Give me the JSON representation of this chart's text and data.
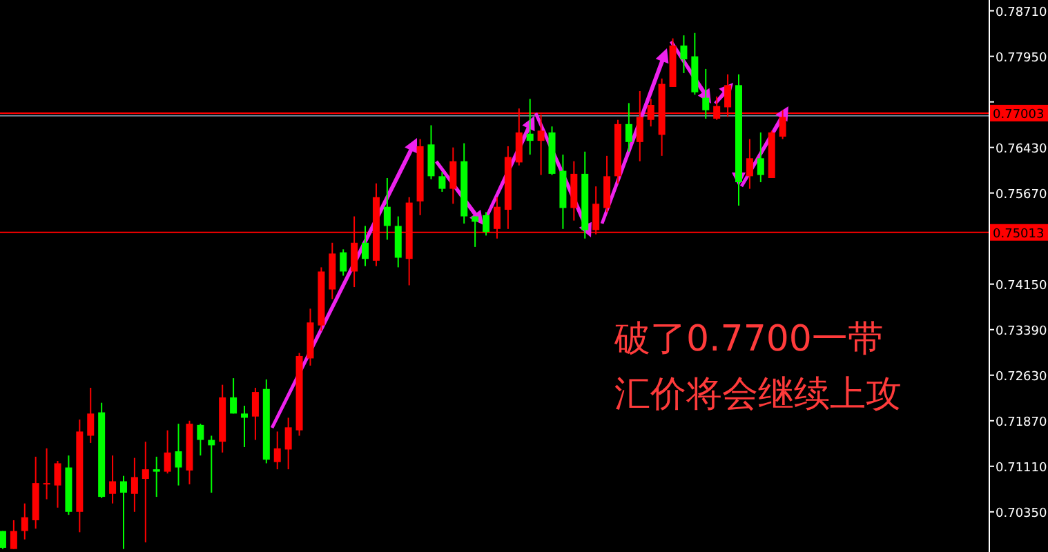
{
  "chart_data": {
    "type": "candlestick",
    "categories": [
      null,
      null,
      null,
      null,
      null,
      null,
      null,
      null,
      null,
      null,
      null,
      null,
      null,
      null,
      null,
      null,
      null,
      null,
      null,
      null,
      null,
      null,
      null,
      null,
      null,
      null,
      null,
      null,
      null,
      null,
      null,
      null,
      null,
      null,
      null,
      null,
      null,
      null,
      null,
      null,
      null,
      null,
      null,
      null,
      null,
      null,
      null,
      null,
      null,
      null,
      null,
      null,
      null,
      null,
      null,
      null,
      null,
      null,
      null,
      null,
      null,
      null,
      null,
      null,
      null,
      null,
      null,
      null,
      null,
      null,
      null,
      null,
      null,
      null,
      null,
      null,
      null,
      null,
      null,
      null,
      null,
      null,
      null,
      null,
      null,
      null,
      null,
      null,
      null,
      null
    ],
    "ohlc": [
      [
        0.7003,
        0.7003,
        0.6973,
        0.6975
      ],
      [
        0.6973,
        0.7021,
        0.6973,
        0.7003
      ],
      [
        0.7003,
        0.7049,
        0.6989,
        0.7026
      ],
      [
        0.7021,
        0.7127,
        0.7007,
        0.7083
      ],
      [
        0.7081,
        0.7141,
        0.7056,
        0.7083
      ],
      [
        0.7079,
        0.712,
        0.7042,
        0.7116
      ],
      [
        0.7109,
        0.7129,
        0.703,
        0.7035
      ],
      [
        0.7035,
        0.7189,
        0.7001,
        0.7169
      ],
      [
        0.7162,
        0.7242,
        0.715,
        0.7199
      ],
      [
        0.7201,
        0.7217,
        0.7058,
        0.706
      ],
      [
        0.7065,
        0.7129,
        0.7049,
        0.7086
      ],
      [
        0.7086,
        0.7095,
        0.6973,
        0.7067
      ],
      [
        0.7065,
        0.7125,
        0.7035,
        0.7093
      ],
      [
        0.709,
        0.7152,
        0.6984,
        0.7106
      ],
      [
        0.7106,
        0.7127,
        0.706,
        0.7102
      ],
      [
        0.7102,
        0.7171,
        0.7099,
        0.7134
      ],
      [
        0.7136,
        0.7182,
        0.7079,
        0.7109
      ],
      [
        0.7104,
        0.7187,
        0.7081,
        0.7182
      ],
      [
        0.718,
        0.7182,
        0.7129,
        0.7155
      ],
      [
        0.7155,
        0.7162,
        0.7067,
        0.7146
      ],
      [
        0.7152,
        0.7247,
        0.7134,
        0.7226
      ],
      [
        0.7226,
        0.7258,
        0.7199,
        0.7199
      ],
      [
        0.7199,
        0.7212,
        0.7143,
        0.7192
      ],
      [
        0.7194,
        0.7242,
        0.7155,
        0.7235
      ],
      [
        0.724,
        0.7256,
        0.7116,
        0.7122
      ],
      [
        0.7118,
        0.7169,
        0.7106,
        0.7141
      ],
      [
        0.7139,
        0.7192,
        0.7106,
        0.7176
      ],
      [
        0.7171,
        0.73,
        0.7162,
        0.7295
      ],
      [
        0.7291,
        0.7374,
        0.7279,
        0.7351
      ],
      [
        0.7346,
        0.7443,
        0.7337,
        0.7436
      ],
      [
        0.7406,
        0.7484,
        0.739,
        0.7466
      ],
      [
        0.7468,
        0.7473,
        0.7429,
        0.7436
      ],
      [
        0.7436,
        0.7528,
        0.741,
        0.7484
      ],
      [
        0.7484,
        0.7512,
        0.7445,
        0.7457
      ],
      [
        0.7454,
        0.7583,
        0.7445,
        0.756
      ],
      [
        0.7544,
        0.7592,
        0.7489,
        0.7512
      ],
      [
        0.7512,
        0.7528,
        0.7443,
        0.7459
      ],
      [
        0.7457,
        0.756,
        0.7413,
        0.7551
      ],
      [
        0.7553,
        0.7657,
        0.753,
        0.7645
      ],
      [
        0.7648,
        0.768,
        0.759,
        0.7595
      ],
      [
        0.7595,
        0.7602,
        0.7569,
        0.7574
      ],
      [
        0.7574,
        0.7643,
        0.7549,
        0.762
      ],
      [
        0.762,
        0.765,
        0.7516,
        0.7528
      ],
      [
        0.7528,
        0.7528,
        0.7477,
        0.7519
      ],
      [
        0.753,
        0.7535,
        0.7496,
        0.7502
      ],
      [
        0.7507,
        0.756,
        0.7491,
        0.7544
      ],
      [
        0.7539,
        0.7645,
        0.7507,
        0.7627
      ],
      [
        0.7618,
        0.7708,
        0.7613,
        0.7668
      ],
      [
        0.7666,
        0.7724,
        0.7631,
        0.7654
      ],
      [
        0.7654,
        0.7698,
        0.7597,
        0.7671
      ],
      [
        0.7668,
        0.7678,
        0.7597,
        0.7599
      ],
      [
        0.7604,
        0.7631,
        0.7507,
        0.7542
      ],
      [
        0.7542,
        0.762,
        0.7521,
        0.7599
      ],
      [
        0.7599,
        0.7636,
        0.7491,
        0.7505
      ],
      [
        0.7505,
        0.7578,
        0.7498,
        0.7549
      ],
      [
        0.7542,
        0.7629,
        0.7535,
        0.7595
      ],
      [
        0.7595,
        0.7689,
        0.7583,
        0.7682
      ],
      [
        0.7682,
        0.7717,
        0.7636,
        0.7652
      ],
      [
        0.7652,
        0.7737,
        0.762,
        0.7694
      ],
      [
        0.7689,
        0.7724,
        0.7678,
        0.7714
      ],
      [
        0.7664,
        0.7758,
        0.7629,
        0.7749
      ],
      [
        0.7744,
        0.7825,
        0.7744,
        0.7813
      ],
      [
        0.7813,
        0.783,
        0.7767,
        0.779
      ],
      [
        0.7795,
        0.7834,
        0.7731,
        0.7735
      ],
      [
        0.7726,
        0.7774,
        0.7691,
        0.7705
      ],
      [
        0.7691,
        0.7728,
        0.7689,
        0.7712
      ],
      [
        0.771,
        0.7765,
        0.7694,
        0.7747
      ],
      [
        0.7747,
        0.7765,
        0.7546,
        0.7585
      ],
      [
        0.7595,
        0.7657,
        0.7574,
        0.7625
      ],
      [
        0.7625,
        0.7668,
        0.7585,
        0.7597
      ],
      [
        0.7592,
        0.7671,
        0.7592,
        0.7668
      ],
      [
        0.7661,
        0.7705,
        0.7657,
        0.7694
      ],
      null,
      null,
      null,
      null,
      null,
      null,
      null,
      null,
      null,
      null,
      null,
      null,
      null,
      null,
      null,
      null,
      null,
      null
    ],
    "colors": [
      "#00ff00",
      "#ff0000",
      "#ff0000",
      "#ff0000",
      "#ff0000",
      "#ff0000",
      "#00ff00",
      "#ff0000",
      "#ff0000",
      "#00ff00",
      "#ff0000",
      "#00ff00",
      "#ff0000",
      "#ff0000",
      "#00ff00",
      "#ff0000",
      "#00ff00",
      "#ff0000",
      "#00ff00",
      "#00ff00",
      "#ff0000",
      "#00ff00",
      "#00ff00",
      "#ff0000",
      "#00ff00",
      "#ff0000",
      "#ff0000",
      "#ff0000",
      "#ff0000",
      "#ff0000",
      "#ff0000",
      "#00ff00",
      "#ff0000",
      "#00ff00",
      "#ff0000",
      "#00ff00",
      "#00ff00",
      "#ff0000",
      "#ff0000",
      "#00ff00",
      "#00ff00",
      "#ff0000",
      "#00ff00",
      "#00ff00",
      "#00ff00",
      "#ff0000",
      "#ff0000",
      "#ff0000",
      "#00ff00",
      "#ff0000",
      "#00ff00",
      "#00ff00",
      "#ff0000",
      "#00ff00",
      "#ff0000",
      "#ff0000",
      "#ff0000",
      "#00ff00",
      "#ff0000",
      "#ff0000",
      "#ff0000",
      "#ff0000",
      "#00ff00",
      "#00ff00",
      "#00ff00",
      "#ff0000",
      "#ff0000",
      "#00ff00",
      "#ff0000",
      "#00ff00",
      "#ff0000",
      "#ff0000",
      null,
      null,
      null,
      null,
      null,
      null,
      null,
      null,
      null,
      null,
      null,
      null,
      null,
      null,
      null,
      null,
      null,
      null
    ],
    "ylim": [
      0.6968,
      0.7889
    ],
    "yticks": [
      {
        "value": 0.7871,
        "label": "0.78710"
      },
      {
        "value": 0.7795,
        "label": "0.77950"
      },
      {
        "value": 0.7719,
        "label": null
      },
      {
        "value": 0.7643,
        "label": "0.76430"
      },
      {
        "value": 0.7567,
        "label": "0.75670"
      },
      {
        "value": 0.7491,
        "label": null
      },
      {
        "value": 0.7415,
        "label": "0.74150"
      },
      {
        "value": 0.7339,
        "label": "0.73390"
      },
      {
        "value": 0.7263,
        "label": "0.72630"
      },
      {
        "value": 0.7187,
        "label": "0.71870"
      },
      {
        "value": 0.7111,
        "label": "0.71110"
      },
      {
        "value": 0.7035,
        "label": "0.70350"
      }
    ],
    "tick_labels": "y",
    "ref_lines": [
      {
        "axis": "y",
        "value": 0.7696,
        "color": "#778899"
      },
      {
        "axis": "y",
        "value": 0.77003,
        "label": "0.77003",
        "color": "#ff0000"
      },
      {
        "axis": "y",
        "value": 0.75013,
        "label": "0.75013",
        "color": "#ff0000"
      }
    ],
    "annotations": [
      "破了0.7700一带",
      "汇价将会继续上攻"
    ]
  }
}
